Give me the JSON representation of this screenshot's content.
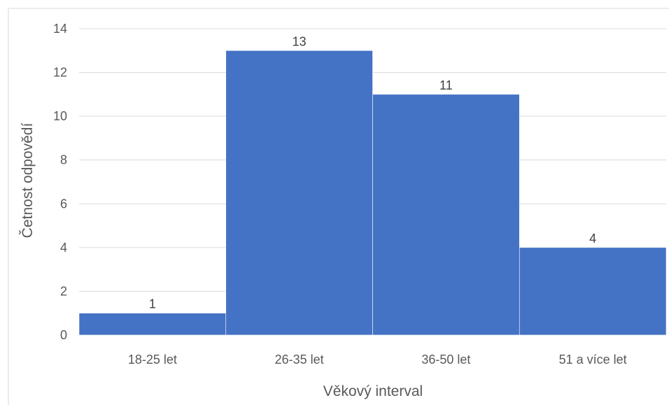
{
  "chart_data": {
    "type": "bar",
    "title": "",
    "xlabel": "Věkový interval",
    "ylabel": "Četnost odpovědí",
    "categories": [
      "18-25 let",
      "26-35 let",
      "36-50 let",
      "51 a více let"
    ],
    "values": [
      1,
      13,
      11,
      4
    ],
    "ylim": [
      0,
      14
    ],
    "yticks": [
      0,
      2,
      4,
      6,
      8,
      10,
      12,
      14
    ],
    "grid": true,
    "legend": "none",
    "bar_color": "#4472C4",
    "grid_color": "#D9D9D9"
  }
}
